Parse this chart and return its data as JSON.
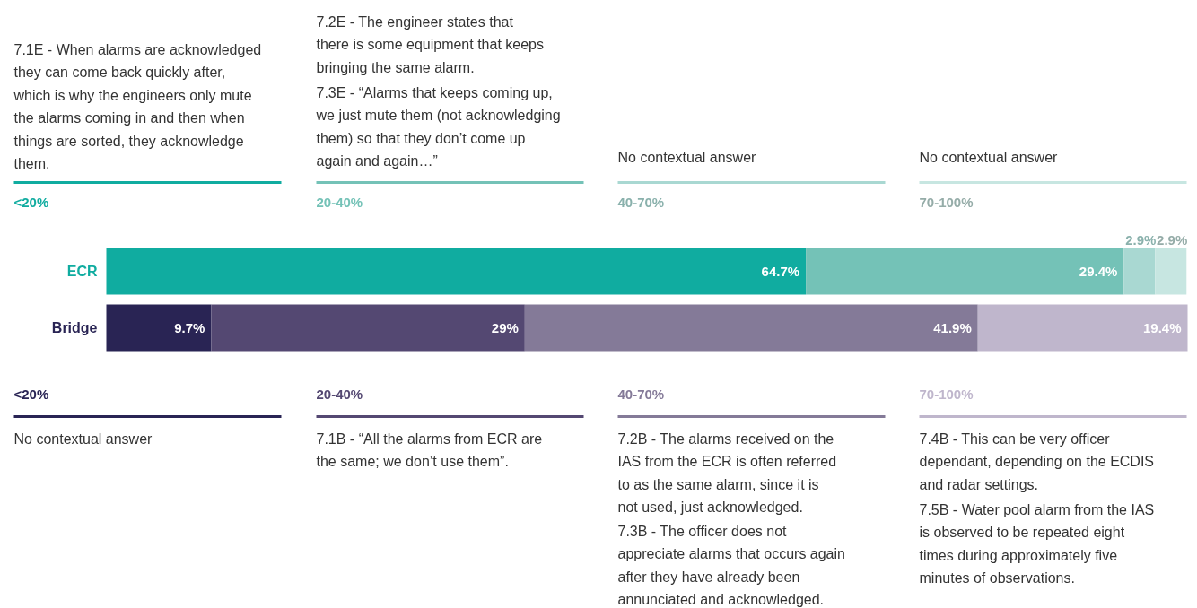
{
  "chart_data": {
    "type": "bar",
    "orientation": "horizontal",
    "stacked": true,
    "categories": [
      "ECR",
      "Bridge"
    ],
    "xlim": [
      0,
      100
    ],
    "tick_labels": "y",
    "series": [
      {
        "name": "<20%",
        "colors": [
          "#10aca0",
          "#292454"
        ],
        "values": [
          64.7,
          9.7
        ],
        "value_labels": [
          "64.7%",
          "9.7%"
        ]
      },
      {
        "name": "20-40%",
        "colors": [
          "#74c2b7",
          "#544872"
        ],
        "values": [
          29.4,
          29
        ],
        "value_labels": [
          "29.4%",
          "29%"
        ]
      },
      {
        "name": "40-70%",
        "colors": [
          "#a9d8d2",
          "#847a98"
        ],
        "values": [
          2.9,
          41.9
        ],
        "value_labels": [
          "2.9%",
          "41.9%"
        ]
      },
      {
        "name": "70-100%",
        "colors": [
          "#c7e6e1",
          "#bfb6cc"
        ],
        "values": [
          2.9,
          19.4
        ],
        "value_labels": [
          "2.9%",
          "19.4%"
        ]
      }
    ],
    "annotations": [
      "7.1E - When alarms are acknowledged they can come back quickly after, which is why the engineers only mute the alarms coming in and then when things are sorted, they acknowledge them.",
      "7.2E - The engineer states that there is some equipment that keeps bringing the same alarm.",
      "7.3E - “Alarms that keeps coming up, we just mute them (not acknowledging them) so that they don’t come up again and again…”",
      "No contextual answer",
      "No contextual answer",
      "No contextual answer",
      "7.1B - “All the alarms from ECR are the same; we don’t use them”.",
      "7.2B - The alarms received on the IAS from the ECR is often referred to as the same alarm, since it is not used, just acknowledged.",
      "7.3B - The officer does not appreciate alarms that occurs again after they have already been annunciated and acknowledged.",
      "7.4B - This can be very officer dependant, depending on the ECDIS and radar settings.",
      "7.5B - Water pool alarm from the IAS is observed to be repeated eight times during approximately five minutes of observations."
    ]
  }
}
